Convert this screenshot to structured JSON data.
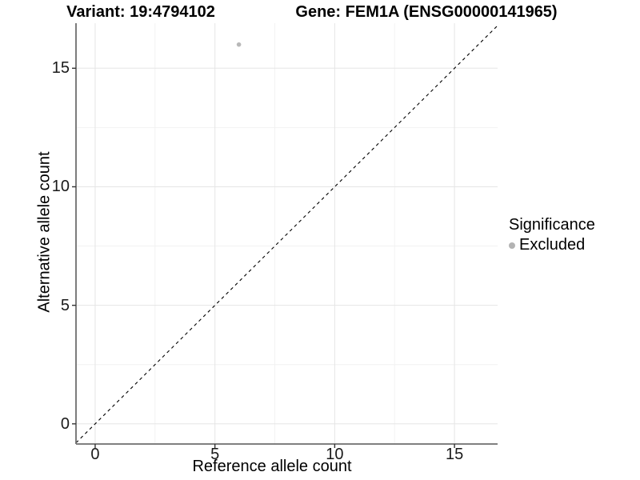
{
  "chart_data": {
    "type": "scatter",
    "titles": {
      "left": "Variant: 19:4794102",
      "right": "Gene: FEM1A (ENSG00000141965)"
    },
    "xlabel": "Reference allele count",
    "ylabel": "Alternative allele count",
    "xlim": [
      -0.8,
      16.8
    ],
    "ylim": [
      -0.85,
      16.9
    ],
    "xticks": [
      0,
      5,
      10,
      15
    ],
    "yticks": [
      0,
      5,
      10,
      15
    ],
    "xticks_minor": [
      2.5,
      7.5,
      12.5
    ],
    "yticks_minor": [
      2.5,
      7.5,
      12.5
    ],
    "grid": true,
    "points": [
      {
        "x": 6,
        "y": 16,
        "series": "Excluded"
      }
    ],
    "identity_line": {
      "equation": "y = x",
      "style": "dashed",
      "color": "#000000"
    },
    "legend": {
      "title": "Significance",
      "position": "right",
      "items": [
        {
          "label": "Excluded",
          "color": "#b3b3b3"
        }
      ]
    },
    "colors": {
      "point": "#b8b8b8",
      "grid_major": "#e5e5e5",
      "grid_minor": "#f2f2f2",
      "axis_line": "#6e6e6e",
      "tick_mark": "#333333",
      "text": "#000000"
    },
    "point_radius": 2.8
  }
}
